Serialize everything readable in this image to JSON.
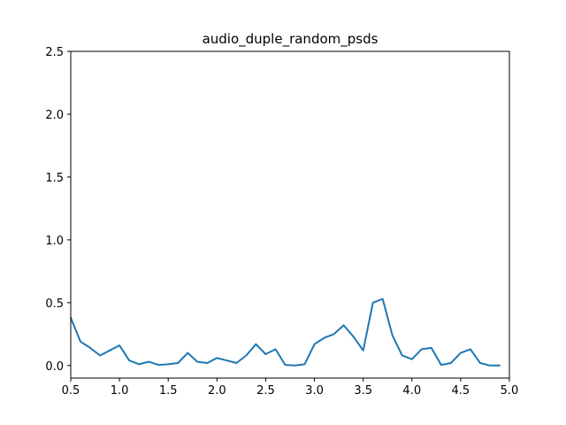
{
  "chart_data": {
    "type": "line",
    "title": "audio_duple_random_psds",
    "xlabel": "",
    "ylabel": "",
    "xlim": [
      0.5,
      5.0
    ],
    "ylim": [
      -0.1,
      2.5
    ],
    "grid": false,
    "x_ticks": [
      "0.5",
      "1.0",
      "1.5",
      "2.0",
      "2.5",
      "3.0",
      "3.5",
      "4.0",
      "4.5",
      "5.0"
    ],
    "y_ticks": [
      "0.0",
      "0.5",
      "1.0",
      "1.5",
      "2.0",
      "2.5"
    ],
    "line_color": "#1f77b4",
    "series": [
      {
        "x": [
          0.5,
          0.6,
          0.7,
          0.8,
          0.9,
          1.0,
          1.1,
          1.2,
          1.3,
          1.4,
          1.5,
          1.6,
          1.7,
          1.8,
          1.9,
          2.0,
          2.1,
          2.2,
          2.3,
          2.4,
          2.5,
          2.6,
          2.7,
          2.8,
          2.9,
          3.0,
          3.1,
          3.2,
          3.3,
          3.4,
          3.5,
          3.6,
          3.7,
          3.8,
          3.9,
          4.0,
          4.1,
          4.2,
          4.3,
          4.4,
          4.5,
          4.6,
          4.7,
          4.8,
          4.9
        ],
        "y": [
          0.38,
          0.19,
          0.14,
          0.08,
          0.12,
          0.16,
          0.04,
          0.01,
          0.03,
          0.005,
          0.01,
          0.02,
          0.1,
          0.03,
          0.02,
          0.06,
          0.04,
          0.02,
          0.08,
          0.17,
          0.09,
          0.13,
          0.005,
          0.0,
          0.01,
          0.17,
          0.22,
          0.25,
          0.32,
          0.23,
          0.12,
          0.5,
          0.53,
          0.24,
          0.08,
          0.05,
          0.13,
          0.14,
          0.005,
          0.02,
          0.1,
          0.13,
          0.02,
          0.0,
          0.0
        ]
      }
    ]
  }
}
